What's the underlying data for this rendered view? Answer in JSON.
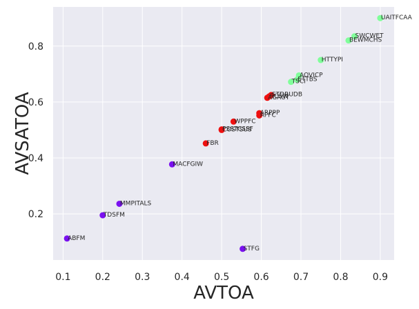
{
  "chart_data": {
    "type": "scatter",
    "title": "",
    "xlabel": "AVTOA",
    "ylabel": "AVSATOA",
    "xlim": [
      0.075,
      0.935
    ],
    "ylim": [
      0.035,
      0.94
    ],
    "xticks": [
      0.1,
      0.2,
      0.3,
      0.4,
      0.5,
      0.6,
      0.7,
      0.8,
      0.9
    ],
    "xtick_labels": [
      "0.1",
      "0.2",
      "0.3",
      "0.4",
      "0.5",
      "0.6",
      "0.7",
      "0.8",
      "0.9"
    ],
    "yticks": [
      0.2,
      0.4,
      0.6,
      0.8
    ],
    "ytick_labels": [
      "0.2",
      "0.4",
      "0.6",
      "0.8"
    ],
    "grid": true,
    "background": "#eaeaf2",
    "grid_color": "#ffffff",
    "colors": {
      "purple": "#7a10f0",
      "red": "#ee1010",
      "green": "#80ff9a"
    },
    "points": [
      {
        "label": "UAITFCAA",
        "x": 0.9,
        "y": 0.9,
        "color": "green"
      },
      {
        "label": "SWCWET",
        "x": 0.835,
        "y": 0.835,
        "color": "green"
      },
      {
        "label": "BEWMCHS",
        "x": 0.82,
        "y": 0.82,
        "color": "green"
      },
      {
        "label": "HTTYPI",
        "x": 0.75,
        "y": 0.75,
        "color": "green"
      },
      {
        "label": "AOVICP",
        "x": 0.695,
        "y": 0.695,
        "color": "green"
      },
      {
        "label": "ETTBS",
        "x": 0.69,
        "y": 0.68,
        "color": "green"
      },
      {
        "label": "TSCI",
        "x": 0.675,
        "y": 0.672,
        "color": "green"
      },
      {
        "label": "STDRUDB",
        "x": 0.625,
        "y": 0.625,
        "color": "red"
      },
      {
        "label": "AGAUT",
        "x": 0.615,
        "y": 0.615,
        "color": "red"
      },
      {
        "label": "RCSW",
        "x": 0.62,
        "y": 0.62,
        "color": "red"
      },
      {
        "label": "ARPPP",
        "x": 0.595,
        "y": 0.56,
        "color": "red"
      },
      {
        "label": "APFC",
        "x": 0.595,
        "y": 0.552,
        "color": "red"
      },
      {
        "label": "WPPFC",
        "x": 0.53,
        "y": 0.53,
        "color": "red"
      },
      {
        "label": "PSSTCSSF",
        "x": 0.5,
        "y": 0.502,
        "color": "red"
      },
      {
        "label": "COSTSUS",
        "x": 0.5,
        "y": 0.5,
        "color": "red"
      },
      {
        "label": "FBR",
        "x": 0.46,
        "y": 0.452,
        "color": "red"
      },
      {
        "label": "MACFGIW",
        "x": 0.375,
        "y": 0.377,
        "color": "purple"
      },
      {
        "label": "MMPITALS",
        "x": 0.242,
        "y": 0.236,
        "color": "purple"
      },
      {
        "label": "TDSFM",
        "x": 0.2,
        "y": 0.195,
        "color": "purple"
      },
      {
        "label": "ABFM",
        "x": 0.11,
        "y": 0.112,
        "color": "purple"
      },
      {
        "label": "STFG",
        "x": 0.553,
        "y": 0.075,
        "color": "purple"
      }
    ]
  }
}
